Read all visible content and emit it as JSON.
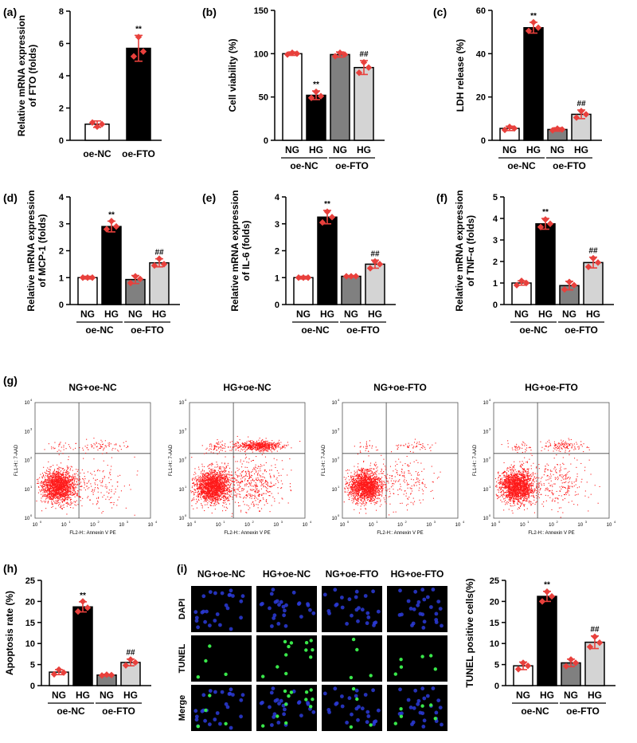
{
  "colors": {
    "white_bar": "#ffffff",
    "black_bar": "#000000",
    "dark_gray_bar": "#808080",
    "light_gray_bar": "#d4d4d4",
    "points": "#e8403c",
    "dots": "#ff1a1a",
    "nucleus_blue": "#2b3bd8",
    "nucleus_green": "#39e84a"
  },
  "chart_data": [
    {
      "id": "a",
      "panel_label": "(a)",
      "type": "bar",
      "ylabel_lines": [
        "Relative mRNA expression",
        "of FTO (folds)"
      ],
      "ylim": [
        0,
        8
      ],
      "yticks": [
        0,
        2,
        4,
        6,
        8
      ],
      "bars": [
        {
          "category": "oe-NC",
          "value": 1.0,
          "error": 0.2,
          "color": "white",
          "points": [
            0.85,
            1.1,
            1.0
          ],
          "sig": ""
        },
        {
          "category": "oe-FTO",
          "value": 5.7,
          "error": 0.8,
          "color": "black",
          "points": [
            6.4,
            5.2,
            5.5
          ],
          "sig": "**"
        }
      ],
      "groups": []
    },
    {
      "id": "b",
      "panel_label": "(b)",
      "type": "bar",
      "ylabel_lines": [
        "Cell viability (%)"
      ],
      "ylim": [
        0,
        150
      ],
      "yticks": [
        0,
        50,
        100,
        150
      ],
      "bars": [
        {
          "category": "NG",
          "value": 100,
          "error": 2,
          "color": "white",
          "points": [
            101,
            99,
            100
          ],
          "sig": ""
        },
        {
          "category": "HG",
          "value": 52,
          "error": 5,
          "color": "black",
          "points": [
            56,
            49,
            51
          ],
          "sig": "**"
        },
        {
          "category": "NG",
          "value": 99,
          "error": 3,
          "color": "dark_gray",
          "points": [
            101,
            97,
            99
          ],
          "sig": ""
        },
        {
          "category": "HG",
          "value": 84,
          "error": 8,
          "color": "light_gray",
          "points": [
            90,
            78,
            84
          ],
          "sig": "##"
        }
      ],
      "groups": [
        {
          "label": "oe-NC",
          "from": 0,
          "to": 1
        },
        {
          "label": "oe-FTO",
          "from": 2,
          "to": 3
        }
      ]
    },
    {
      "id": "c",
      "panel_label": "(c)",
      "type": "bar",
      "ylabel_lines": [
        "LDH release (%)"
      ],
      "ylim": [
        0,
        60
      ],
      "yticks": [
        0,
        20,
        40,
        60
      ],
      "bars": [
        {
          "category": "NG",
          "value": 5.5,
          "error": 1.0,
          "color": "white",
          "points": [
            6.2,
            4.8,
            5.5
          ],
          "sig": ""
        },
        {
          "category": "HG",
          "value": 52,
          "error": 2.5,
          "color": "black",
          "points": [
            54.5,
            50.5,
            52
          ],
          "sig": "**"
        },
        {
          "category": "NG",
          "value": 5.0,
          "error": 0.8,
          "color": "dark_gray",
          "points": [
            5.4,
            4.6,
            5.0
          ],
          "sig": ""
        },
        {
          "category": "HG",
          "value": 12,
          "error": 2.0,
          "color": "light_gray",
          "points": [
            13.5,
            10.5,
            12
          ],
          "sig": "##"
        }
      ],
      "groups": [
        {
          "label": "oe-NC",
          "from": 0,
          "to": 1
        },
        {
          "label": "oe-FTO",
          "from": 2,
          "to": 3
        }
      ]
    },
    {
      "id": "d",
      "panel_label": "(d)",
      "type": "bar",
      "ylabel_lines": [
        "Relative mRNA expression",
        "of MCP-1 (folds)"
      ],
      "ylim": [
        0,
        4
      ],
      "yticks": [
        0,
        1,
        2,
        3,
        4
      ],
      "bars": [
        {
          "category": "NG",
          "value": 1.0,
          "error": 0.05,
          "color": "white",
          "points": [
            1.0,
            1.0,
            1.0
          ],
          "sig": ""
        },
        {
          "category": "HG",
          "value": 2.9,
          "error": 0.2,
          "color": "black",
          "points": [
            3.1,
            2.8,
            2.9
          ],
          "sig": "**"
        },
        {
          "category": "NG",
          "value": 0.93,
          "error": 0.15,
          "color": "dark_gray",
          "points": [
            1.05,
            0.8,
            0.95
          ],
          "sig": ""
        },
        {
          "category": "HG",
          "value": 1.55,
          "error": 0.15,
          "color": "light_gray",
          "points": [
            1.7,
            1.45,
            1.5
          ],
          "sig": "##"
        }
      ],
      "groups": [
        {
          "label": "oe-NC",
          "from": 0,
          "to": 1
        },
        {
          "label": "oe-FTO",
          "from": 2,
          "to": 3
        }
      ]
    },
    {
      "id": "e",
      "panel_label": "(e)",
      "type": "bar",
      "ylabel_lines": [
        "Relative mRNA expression",
        "of IL-6 (folds)"
      ],
      "ylim": [
        0,
        4
      ],
      "yticks": [
        0,
        1,
        2,
        3,
        4
      ],
      "bars": [
        {
          "category": "NG",
          "value": 1.0,
          "error": 0.05,
          "color": "white",
          "points": [
            1.0,
            1.0,
            1.0
          ],
          "sig": ""
        },
        {
          "category": "HG",
          "value": 3.25,
          "error": 0.25,
          "color": "black",
          "points": [
            3.45,
            3.05,
            3.25
          ],
          "sig": "**"
        },
        {
          "category": "NG",
          "value": 1.05,
          "error": 0.03,
          "color": "dark_gray",
          "points": [
            1.05,
            1.05,
            1.05
          ],
          "sig": ""
        },
        {
          "category": "HG",
          "value": 1.5,
          "error": 0.15,
          "color": "light_gray",
          "points": [
            1.6,
            1.35,
            1.5
          ],
          "sig": "##"
        }
      ],
      "groups": [
        {
          "label": "oe-NC",
          "from": 0,
          "to": 1
        },
        {
          "label": "oe-FTO",
          "from": 2,
          "to": 3
        }
      ]
    },
    {
      "id": "f",
      "panel_label": "(f)",
      "type": "bar",
      "ylabel_lines": [
        "Relative mRNA expression",
        "of TNF-α (folds)"
      ],
      "ylim": [
        0,
        5
      ],
      "yticks": [
        0,
        1,
        2,
        3,
        4,
        5
      ],
      "bars": [
        {
          "category": "NG",
          "value": 1.0,
          "error": 0.1,
          "color": "white",
          "points": [
            1.1,
            0.9,
            1.0
          ],
          "sig": ""
        },
        {
          "category": "HG",
          "value": 3.75,
          "error": 0.25,
          "color": "black",
          "points": [
            3.95,
            3.6,
            3.75
          ],
          "sig": "**"
        },
        {
          "category": "NG",
          "value": 0.88,
          "error": 0.2,
          "color": "dark_gray",
          "points": [
            1.05,
            0.7,
            0.9
          ],
          "sig": ""
        },
        {
          "category": "HG",
          "value": 1.95,
          "error": 0.25,
          "color": "light_gray",
          "points": [
            2.15,
            1.75,
            1.95
          ],
          "sig": "##"
        }
      ],
      "groups": [
        {
          "label": "oe-NC",
          "from": 0,
          "to": 1
        },
        {
          "label": "oe-FTO",
          "from": 2,
          "to": 3
        }
      ]
    },
    {
      "id": "h",
      "panel_label": "(h)",
      "type": "bar",
      "ylabel_lines": [
        "Apoptosis rate (%)"
      ],
      "ylim": [
        0,
        25
      ],
      "yticks": [
        0,
        5,
        10,
        15,
        20,
        25
      ],
      "bars": [
        {
          "category": "NG",
          "value": 3.2,
          "error": 0.6,
          "color": "white",
          "points": [
            3.8,
            2.7,
            3.1
          ],
          "sig": ""
        },
        {
          "category": "HG",
          "value": 18.7,
          "error": 1.2,
          "color": "black",
          "points": [
            20.0,
            17.6,
            18.5
          ],
          "sig": "**"
        },
        {
          "category": "NG",
          "value": 2.5,
          "error": 0.2,
          "color": "dark_gray",
          "points": [
            2.6,
            2.4,
            2.5
          ],
          "sig": ""
        },
        {
          "category": "HG",
          "value": 5.5,
          "error": 0.8,
          "color": "light_gray",
          "points": [
            6.2,
            4.8,
            5.5
          ],
          "sig": "##"
        }
      ],
      "groups": [
        {
          "label": "oe-NC",
          "from": 0,
          "to": 1
        },
        {
          "label": "oe-FTO",
          "from": 2,
          "to": 3
        }
      ]
    },
    {
      "id": "i",
      "panel_label": "",
      "type": "bar",
      "ylabel_lines": [
        "TUNEL positive cells(%)"
      ],
      "ylim": [
        0,
        25
      ],
      "yticks": [
        0,
        5,
        10,
        15,
        20,
        25
      ],
      "bars": [
        {
          "category": "NG",
          "value": 4.7,
          "error": 0.9,
          "color": "white",
          "points": [
            5.4,
            3.9,
            4.7
          ],
          "sig": ""
        },
        {
          "category": "HG",
          "value": 21.2,
          "error": 1.2,
          "color": "black",
          "points": [
            22.3,
            20.0,
            21.2
          ],
          "sig": "**"
        },
        {
          "category": "NG",
          "value": 5.4,
          "error": 0.9,
          "color": "dark_gray",
          "points": [
            6.2,
            4.6,
            5.4
          ],
          "sig": ""
        },
        {
          "category": "HG",
          "value": 10.3,
          "error": 1.5,
          "color": "light_gray",
          "points": [
            11.6,
            9.2,
            10.2
          ],
          "sig": "##"
        }
      ],
      "groups": [
        {
          "label": "oe-NC",
          "from": 0,
          "to": 1
        },
        {
          "label": "oe-FTO",
          "from": 2,
          "to": 3
        }
      ]
    }
  ],
  "flow": {
    "panel_label": "(g)",
    "xlabel": "FL2-H:: Annexin V PE",
    "ylabel": "FL1-H:: 7-AAD",
    "tick_labels": [
      "10",
      "10",
      "10",
      "10",
      "10"
    ],
    "tick_exponents": [
      "0",
      "1",
      "2",
      "3",
      "4"
    ],
    "plots": [
      {
        "title": "NG+oe-NC",
        "main_count": 1700,
        "upper_right_count": 70,
        "lower_right_count": 150,
        "upper_left_count": 30
      },
      {
        "title": "HG+oe-NC",
        "main_count": 1900,
        "upper_right_count": 600,
        "lower_right_count": 450,
        "upper_left_count": 60
      },
      {
        "title": "NG+oe-FTO",
        "main_count": 1700,
        "upper_right_count": 50,
        "lower_right_count": 180,
        "upper_left_count": 30
      },
      {
        "title": "HG+oe-FTO",
        "main_count": 1800,
        "upper_right_count": 120,
        "lower_right_count": 260,
        "upper_left_count": 40
      }
    ]
  },
  "tunel": {
    "panel_label": "(i)",
    "columns": [
      "NG+oe-NC",
      "HG+oe-NC",
      "NG+oe-FTO",
      "HG+oe-FTO"
    ],
    "rows": [
      "DAPI",
      "TUNEL",
      "Merge"
    ],
    "positive_counts": [
      4,
      12,
      4,
      6
    ]
  }
}
